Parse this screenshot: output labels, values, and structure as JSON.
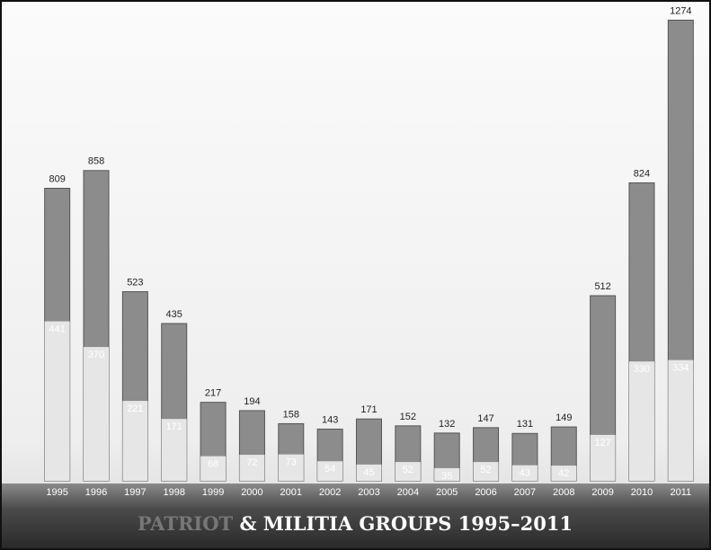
{
  "chart_data": {
    "type": "bar",
    "overlap": true,
    "title_prefix": "PATRIOT",
    "title": "& MILITIA GROUPS 1995–2011",
    "categories": [
      "1995",
      "1996",
      "1997",
      "1998",
      "1999",
      "2000",
      "2001",
      "2002",
      "2003",
      "2004",
      "2005",
      "2006",
      "2007",
      "2008",
      "2009",
      "2010",
      "2011"
    ],
    "series": [
      {
        "color": "#8c8c8c",
        "values": [
          809,
          858,
          523,
          435,
          217,
          194,
          158,
          143,
          171,
          152,
          132,
          147,
          131,
          149,
          512,
          824,
          1274
        ]
      },
      {
        "color": "#e6e6e6",
        "values": [
          441,
          370,
          221,
          171,
          68,
          72,
          73,
          54,
          45,
          52,
          35,
          52,
          43,
          42,
          127,
          330,
          334
        ]
      }
    ],
    "ylim": [
      0,
      1280
    ]
  }
}
